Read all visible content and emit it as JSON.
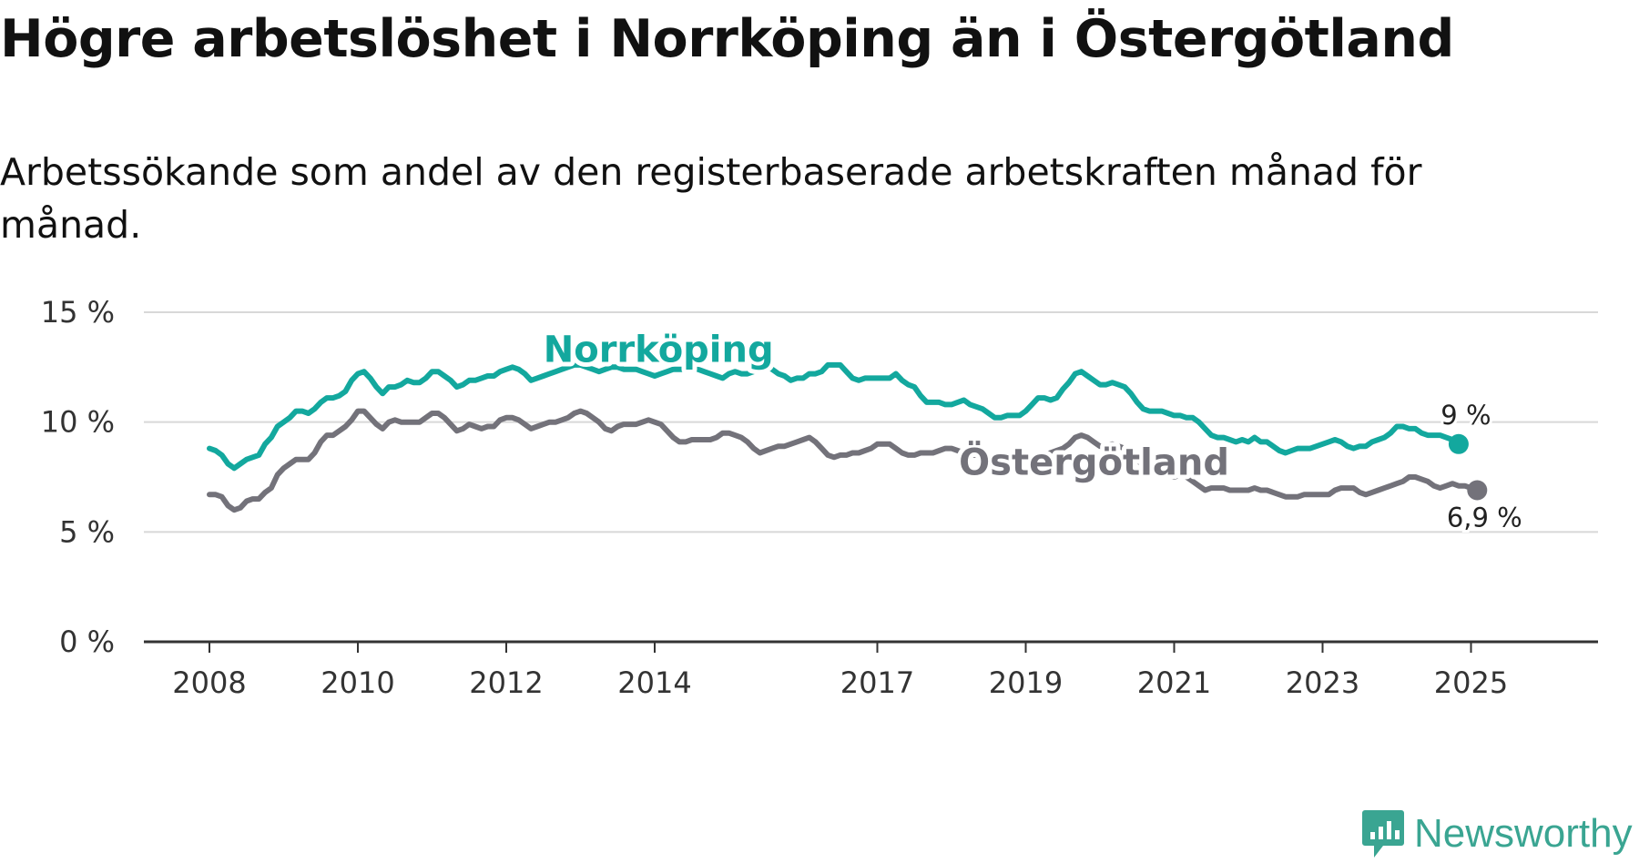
{
  "title": "Högre arbetslöshet i Norrköping än i Östergötland",
  "subtitle": "Arbetssökande som andel av den registerbaserade arbetskraften månad för månad.",
  "brand": {
    "name": "Newsworthy",
    "color": "#3aa592",
    "icon": "newsworthy-logo-icon"
  },
  "chart_data": {
    "type": "line",
    "x_start": "2008-01",
    "x_step": "month",
    "xlim": [
      2008.0,
      2026.7
    ],
    "ylim": [
      0,
      15
    ],
    "y_ticks": [
      0,
      5,
      10,
      15
    ],
    "y_tick_labels": [
      "0 %",
      "5 %",
      "10 %",
      "15 %"
    ],
    "x_ticks": [
      2008,
      2010,
      2012,
      2014,
      2017,
      2019,
      2021,
      2023,
      2025
    ],
    "x_tick_labels": [
      "2008",
      "2010",
      "2012",
      "2014",
      "2017",
      "2019",
      "2021",
      "2023",
      "2025"
    ],
    "grid": true,
    "xlabel": "",
    "ylabel": "",
    "series": [
      {
        "name": "Norrköping",
        "color": "#13a89e",
        "end_label": "9 %",
        "values": [
          8.8,
          8.7,
          8.5,
          8.1,
          7.9,
          8.1,
          8.3,
          8.4,
          8.5,
          9.0,
          9.3,
          9.8,
          10.0,
          10.2,
          10.5,
          10.5,
          10.4,
          10.6,
          10.9,
          11.1,
          11.1,
          11.2,
          11.4,
          11.9,
          12.2,
          12.3,
          12.0,
          11.6,
          11.3,
          11.6,
          11.6,
          11.7,
          11.9,
          11.8,
          11.8,
          12.0,
          12.3,
          12.3,
          12.1,
          11.9,
          11.6,
          11.7,
          11.9,
          11.9,
          12.0,
          12.1,
          12.1,
          12.3,
          12.4,
          12.5,
          12.4,
          12.2,
          11.9,
          12.0,
          12.1,
          12.2,
          12.3,
          12.4,
          12.5,
          12.6,
          12.6,
          12.5,
          12.4,
          12.3,
          12.4,
          12.5,
          12.5,
          12.4,
          12.4,
          12.4,
          12.3,
          12.2,
          12.1,
          12.2,
          12.3,
          12.4,
          12.4,
          12.4,
          12.5,
          12.4,
          12.3,
          12.2,
          12.1,
          12.0,
          12.2,
          12.3,
          12.2,
          12.2,
          12.3,
          12.5,
          12.5,
          12.4,
          12.2,
          12.1,
          11.9,
          12.0,
          12.0,
          12.2,
          12.2,
          12.3,
          12.6,
          12.6,
          12.6,
          12.3,
          12.0,
          11.9,
          12.0,
          12.0,
          12.0,
          12.0,
          12.0,
          12.2,
          11.9,
          11.7,
          11.6,
          11.2,
          10.9,
          10.9,
          10.9,
          10.8,
          10.8,
          10.9,
          11.0,
          10.8,
          10.7,
          10.6,
          10.4,
          10.2,
          10.2,
          10.3,
          10.3,
          10.3,
          10.5,
          10.8,
          11.1,
          11.1,
          11.0,
          11.1,
          11.5,
          11.8,
          12.2,
          12.3,
          12.1,
          11.9,
          11.7,
          11.7,
          11.8,
          11.7,
          11.6,
          11.3,
          10.9,
          10.6,
          10.5,
          10.5,
          10.5,
          10.4,
          10.3,
          10.3,
          10.2,
          10.2,
          10.0,
          9.7,
          9.4,
          9.3,
          9.3,
          9.2,
          9.1,
          9.2,
          9.1,
          9.3,
          9.1,
          9.1,
          8.9,
          8.7,
          8.6,
          8.7,
          8.8,
          8.8,
          8.8,
          8.9,
          9.0,
          9.1,
          9.2,
          9.1,
          8.9,
          8.8,
          8.9,
          8.9,
          9.1,
          9.2,
          9.3,
          9.5,
          9.8,
          9.8,
          9.7,
          9.7,
          9.5,
          9.4,
          9.4,
          9.4,
          9.3,
          9.2,
          9.0
        ]
      },
      {
        "name": "Östergötland",
        "color": "#73727a",
        "end_label": "6,9 %",
        "values": [
          6.7,
          6.7,
          6.6,
          6.2,
          6.0,
          6.1,
          6.4,
          6.5,
          6.5,
          6.8,
          7.0,
          7.6,
          7.9,
          8.1,
          8.3,
          8.3,
          8.3,
          8.6,
          9.1,
          9.4,
          9.4,
          9.6,
          9.8,
          10.1,
          10.5,
          10.5,
          10.2,
          9.9,
          9.7,
          10.0,
          10.1,
          10.0,
          10.0,
          10.0,
          10.0,
          10.2,
          10.4,
          10.4,
          10.2,
          9.9,
          9.6,
          9.7,
          9.9,
          9.8,
          9.7,
          9.8,
          9.8,
          10.1,
          10.2,
          10.2,
          10.1,
          9.9,
          9.7,
          9.8,
          9.9,
          10.0,
          10.0,
          10.1,
          10.2,
          10.4,
          10.5,
          10.4,
          10.2,
          10.0,
          9.7,
          9.6,
          9.8,
          9.9,
          9.9,
          9.9,
          10.0,
          10.1,
          10.0,
          9.9,
          9.6,
          9.3,
          9.1,
          9.1,
          9.2,
          9.2,
          9.2,
          9.2,
          9.3,
          9.5,
          9.5,
          9.4,
          9.3,
          9.1,
          8.8,
          8.6,
          8.7,
          8.8,
          8.9,
          8.9,
          9.0,
          9.1,
          9.2,
          9.3,
          9.1,
          8.8,
          8.5,
          8.4,
          8.5,
          8.5,
          8.6,
          8.6,
          8.7,
          8.8,
          9.0,
          9.0,
          9.0,
          8.8,
          8.6,
          8.5,
          8.5,
          8.6,
          8.6,
          8.6,
          8.7,
          8.8,
          8.8,
          8.7,
          8.6,
          8.5,
          8.5,
          8.5,
          8.5,
          8.4,
          8.3,
          8.3,
          8.3,
          8.2,
          8.2,
          8.3,
          8.4,
          8.5,
          8.6,
          8.7,
          8.8,
          9.0,
          9.3,
          9.4,
          9.3,
          9.1,
          8.9,
          8.9,
          9.0,
          8.9,
          8.8,
          8.6,
          8.3,
          8.0,
          7.8,
          7.7,
          7.7,
          7.6,
          7.5,
          7.6,
          7.5,
          7.3,
          7.1,
          6.9,
          7.0,
          7.0,
          7.0,
          6.9,
          6.9,
          6.9,
          6.9,
          7.0,
          6.9,
          6.9,
          6.8,
          6.7,
          6.6,
          6.6,
          6.6,
          6.7,
          6.7,
          6.7,
          6.7,
          6.7,
          6.9,
          7.0,
          7.0,
          7.0,
          6.8,
          6.7,
          6.8,
          6.9,
          7.0,
          7.1,
          7.2,
          7.3,
          7.5,
          7.5,
          7.4,
          7.3,
          7.1,
          7.0,
          7.1,
          7.2,
          7.1,
          7.1,
          7.0,
          6.9
        ]
      }
    ]
  }
}
